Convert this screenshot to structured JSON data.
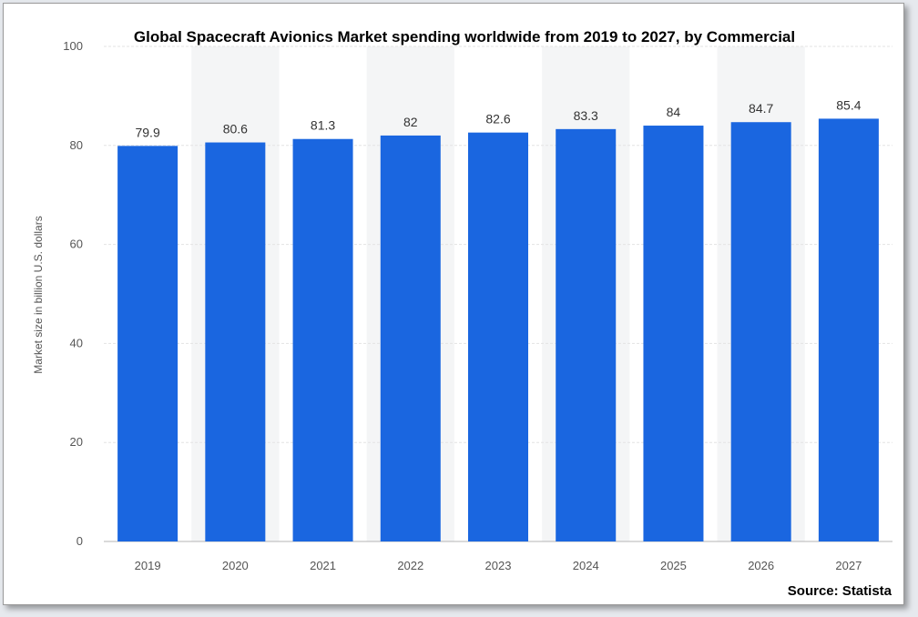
{
  "chart_data": {
    "type": "bar",
    "title": "Global Spacecraft Avionics Market spending worldwide from 2019 to 2027, by Commercial",
    "ylabel": "Market size in billion U.S. dollars",
    "xlabel": "",
    "source": "Source: Statista",
    "categories": [
      "2019",
      "2020",
      "2021",
      "2022",
      "2023",
      "2024",
      "2025",
      "2026",
      "2027"
    ],
    "values": [
      79.9,
      80.6,
      81.3,
      82,
      82.6,
      83.3,
      84,
      84.7,
      85.4
    ],
    "value_labels": [
      "79.9",
      "80.6",
      "81.3",
      "82",
      "82.6",
      "83.3",
      "84",
      "84.7",
      "85.4"
    ],
    "ylim": [
      0,
      100
    ],
    "yticks": [
      0,
      20,
      40,
      60,
      80,
      100
    ],
    "grid": true,
    "bar_color": "#1a66e0",
    "band_color": "#f4f5f6"
  }
}
